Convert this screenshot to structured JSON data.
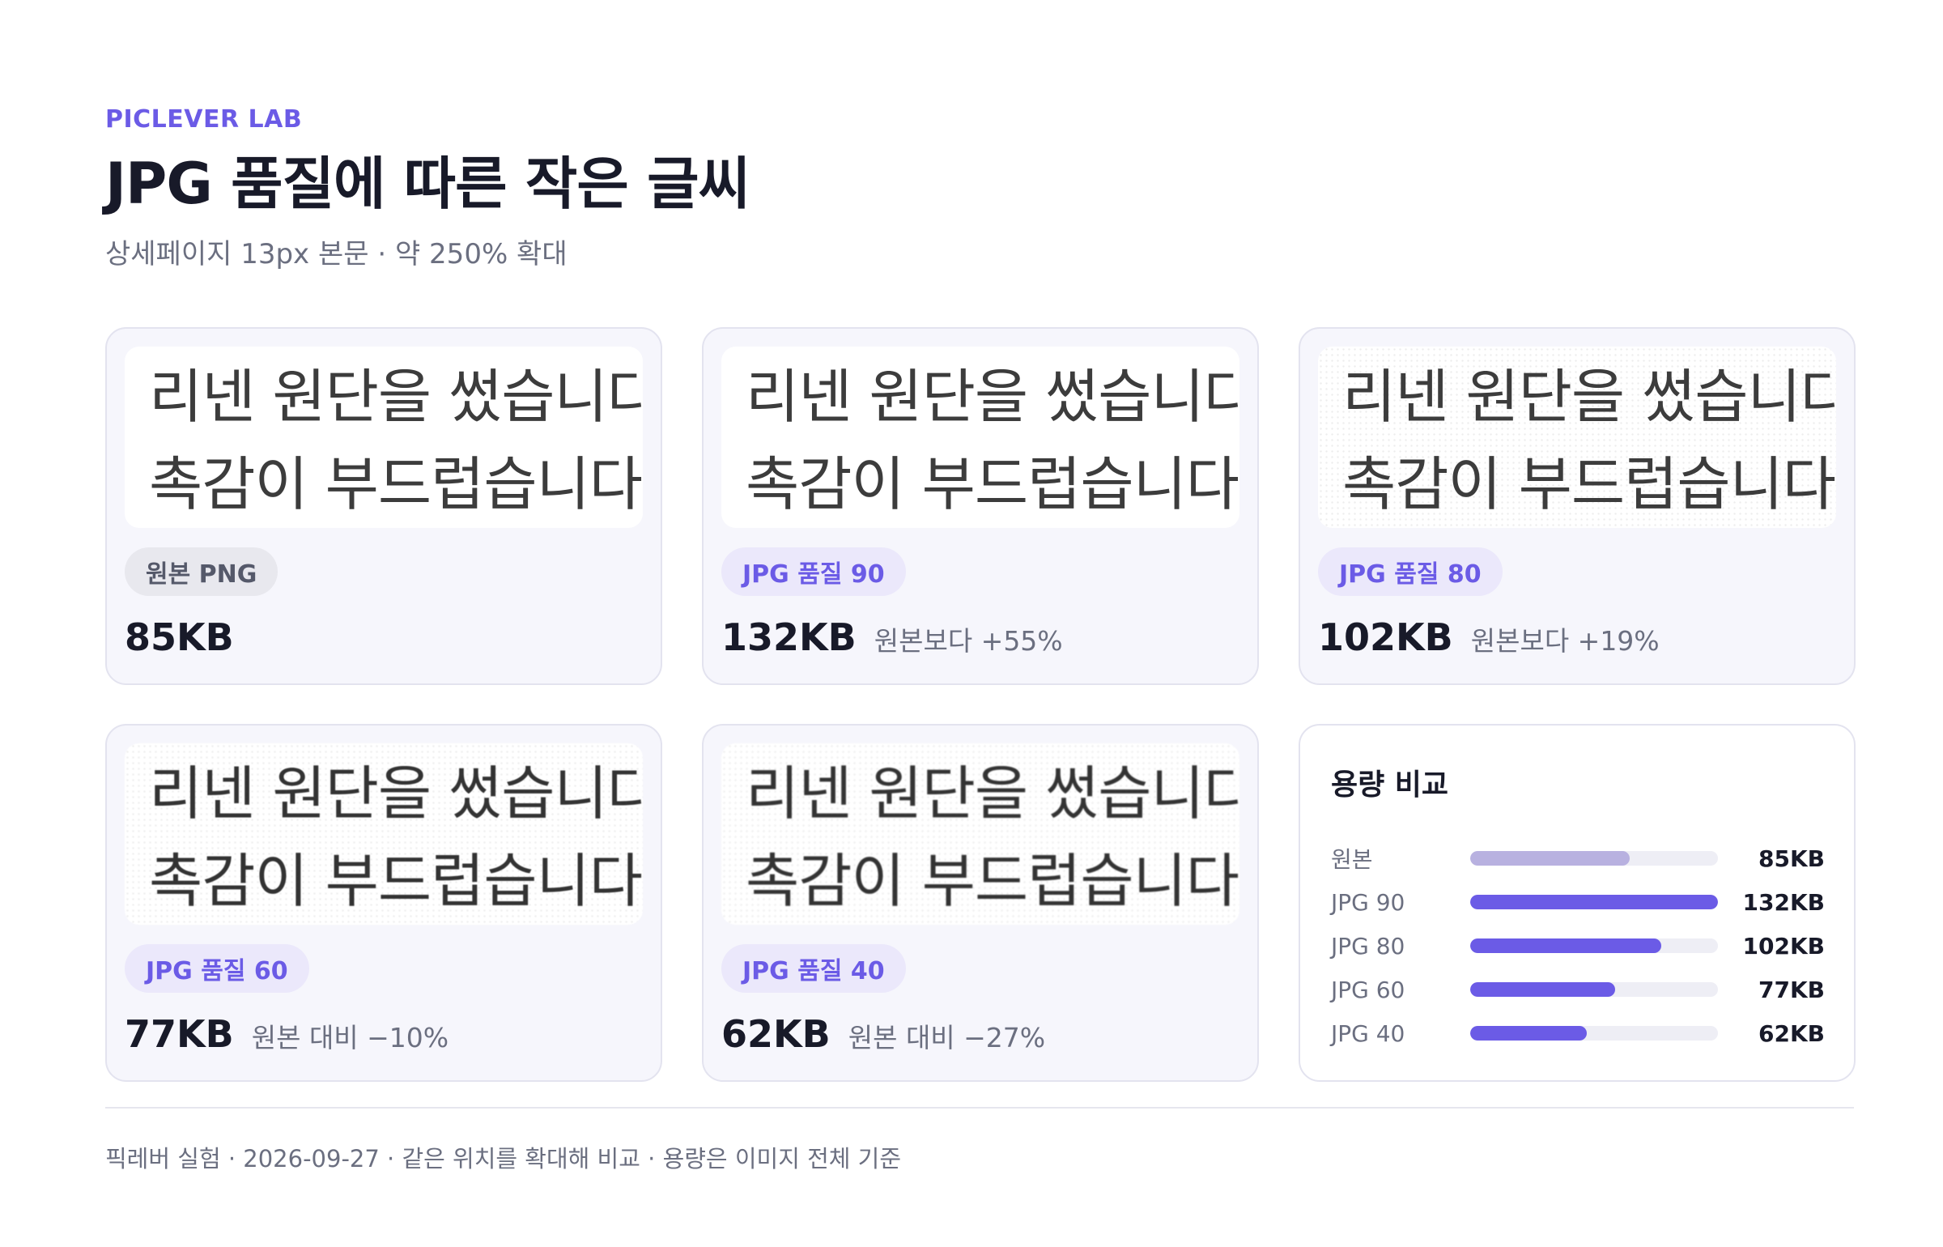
{
  "header": {
    "kicker": "PICLEVER LAB",
    "title": "JPG 품질에 따른 작은 글씨",
    "subtitle": "상세페이지 13px 본문 · 약 250% 확대"
  },
  "sample_text": {
    "line1": "리넨 원단을 썼습니다.",
    "line2": "촉감이 부드럽습니다."
  },
  "cards": [
    {
      "badge": "원본 PNG",
      "size": "85KB",
      "delta": ""
    },
    {
      "badge": "JPG 품질 90",
      "size": "132KB",
      "delta": "원본보다 +55%"
    },
    {
      "badge": "JPG 품질 80",
      "size": "102KB",
      "delta": "원본보다 +19%"
    },
    {
      "badge": "JPG 품질 60",
      "size": "77KB",
      "delta": "원본 대비 −10%"
    },
    {
      "badge": "JPG 품질 40",
      "size": "62KB",
      "delta": "원본 대비 −27%"
    }
  ],
  "compare": {
    "title": "용량 비교",
    "rows": [
      {
        "label": "원본",
        "value": "85KB",
        "kb": 85
      },
      {
        "label": "JPG 90",
        "value": "132KB",
        "kb": 132
      },
      {
        "label": "JPG 80",
        "value": "102KB",
        "kb": 102
      },
      {
        "label": "JPG 60",
        "value": "77KB",
        "kb": 77
      },
      {
        "label": "JPG 40",
        "value": "62KB",
        "kb": 62
      }
    ]
  },
  "footer": "픽레버 실험 · 2026-09-27 · 같은 위치를 확대해 비교 · 용량은 이미지 전체 기준",
  "colors": {
    "accent": "#6b5be6",
    "original_bar": "#b8b1e0",
    "card_bg": "#f6f6fc"
  }
}
